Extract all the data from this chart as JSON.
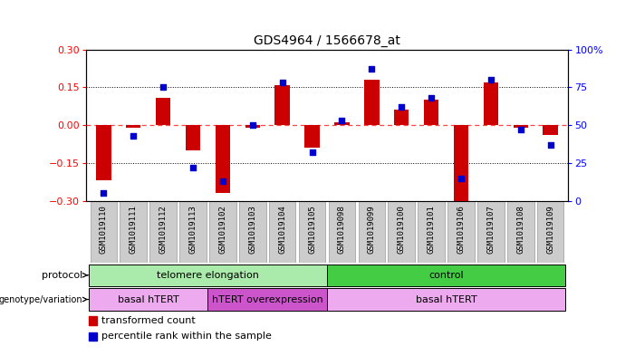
{
  "title": "GDS4964 / 1566678_at",
  "samples": [
    "GSM1019110",
    "GSM1019111",
    "GSM1019112",
    "GSM1019113",
    "GSM1019102",
    "GSM1019103",
    "GSM1019104",
    "GSM1019105",
    "GSM1019098",
    "GSM1019099",
    "GSM1019100",
    "GSM1019101",
    "GSM1019106",
    "GSM1019107",
    "GSM1019108",
    "GSM1019109"
  ],
  "transformed_count": [
    -0.22,
    -0.01,
    0.11,
    -0.1,
    -0.27,
    -0.01,
    0.16,
    -0.09,
    0.01,
    0.18,
    0.06,
    0.1,
    -0.3,
    0.17,
    -0.01,
    -0.04
  ],
  "percentile_rank": [
    5,
    43,
    75,
    22,
    13,
    50,
    78,
    32,
    53,
    87,
    62,
    68,
    15,
    80,
    47,
    37
  ],
  "ylim_left": [
    -0.3,
    0.3
  ],
  "ylim_right": [
    0,
    100
  ],
  "yticks_left": [
    -0.3,
    -0.15,
    0.0,
    0.15,
    0.3
  ],
  "yticks_right": [
    0,
    25,
    50,
    75,
    100
  ],
  "bar_color": "#cc0000",
  "dot_color": "#0000cc",
  "zero_line_color": "#ff4444",
  "dotted_line_color": "#000000",
  "protocol_groups": [
    {
      "label": "telomere elongation",
      "start": 0,
      "end": 8,
      "color": "#aaeaaa"
    },
    {
      "label": "control",
      "start": 8,
      "end": 16,
      "color": "#44cc44"
    }
  ],
  "genotype_groups": [
    {
      "label": "basal hTERT",
      "start": 0,
      "end": 4,
      "color": "#eeaaee"
    },
    {
      "label": "hTERT overexpression",
      "start": 4,
      "end": 8,
      "color": "#cc55cc"
    },
    {
      "label": "basal hTERT",
      "start": 8,
      "end": 16,
      "color": "#eeaaee"
    }
  ],
  "legend_items": [
    {
      "label": "transformed count",
      "color": "#cc0000"
    },
    {
      "label": "percentile rank within the sample",
      "color": "#0000cc"
    }
  ],
  "tick_label_fontsize": 6.5,
  "title_fontsize": 10,
  "sample_bg_color": "#cccccc",
  "sample_border_color": "#999999"
}
